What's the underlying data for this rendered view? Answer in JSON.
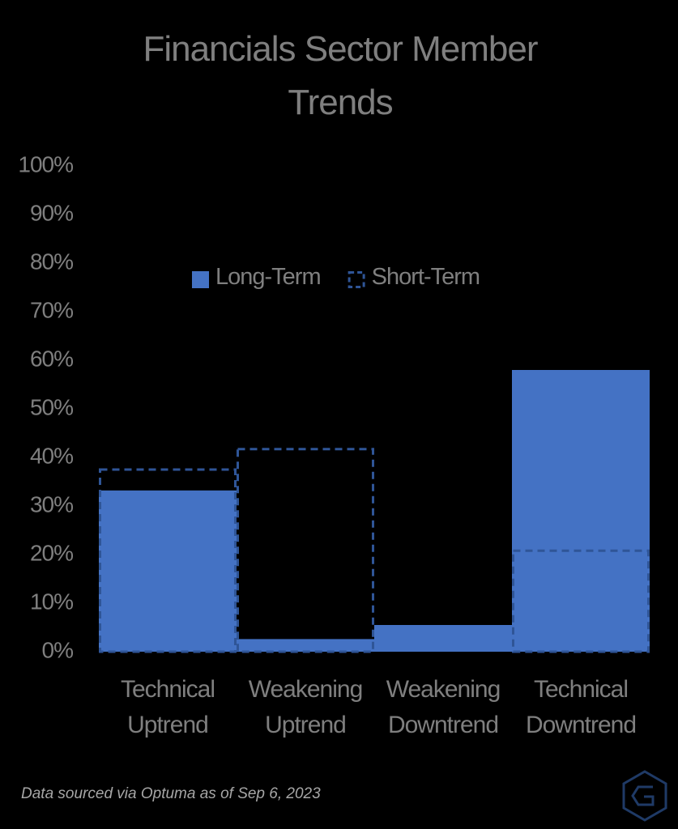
{
  "chart_data": {
    "type": "bar",
    "title": "Financials Sector Member Trends",
    "categories": [
      "Technical Uptrend",
      "Weakening Uptrend",
      "Weakening Downtrend",
      "Technical Downtrend"
    ],
    "series": [
      {
        "name": "Long-Term",
        "color": "#4472c4",
        "values": [
          33.2,
          2.6,
          5.5,
          58
        ]
      },
      {
        "name": "Short-Term",
        "color": "#2f5597",
        "values": [
          37.5,
          41.7,
          0,
          20.8
        ]
      }
    ],
    "ylim": [
      0,
      100
    ],
    "yticks": [
      {
        "value": 0,
        "label": "0%"
      },
      {
        "value": 10,
        "label": "10%"
      },
      {
        "value": 20,
        "label": "20%"
      },
      {
        "value": 30,
        "label": "30%"
      },
      {
        "value": 40,
        "label": "40%"
      },
      {
        "value": 50,
        "label": "50%"
      },
      {
        "value": 60,
        "label": "60%"
      },
      {
        "value": 70,
        "label": "70%"
      },
      {
        "value": 80,
        "label": "80%"
      },
      {
        "value": 90,
        "label": "90%"
      },
      {
        "value": 100,
        "label": "100%"
      }
    ],
    "grid": false,
    "legend": "top",
    "note": "Data sourced via Optuma as of Sep 6, 2023"
  }
}
